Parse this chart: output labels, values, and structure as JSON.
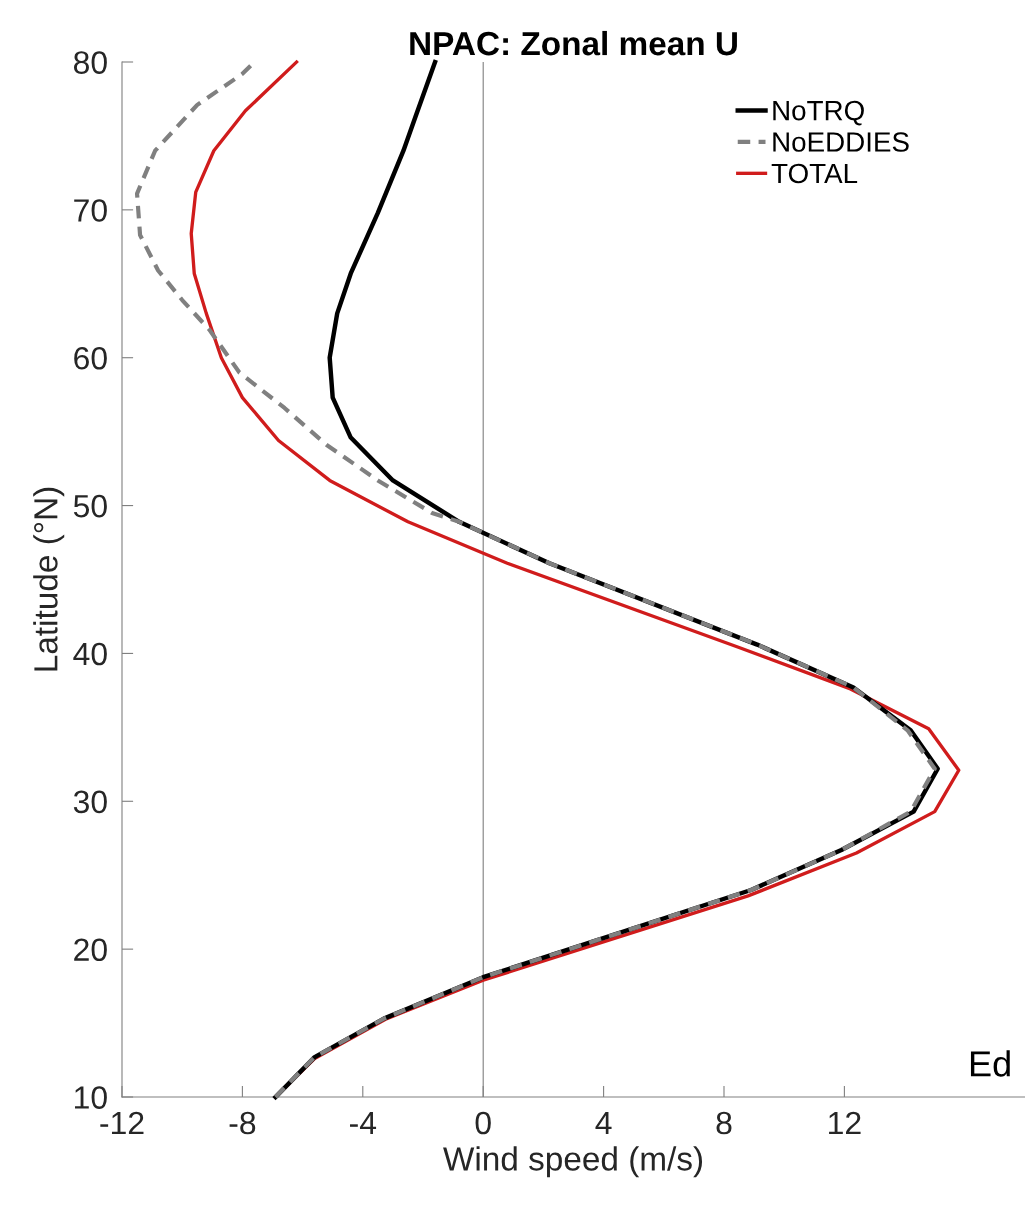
{
  "chart_data": {
    "type": "line",
    "title": "NPAC: Zonal mean U",
    "xlabel": "Wind speed (m/s)",
    "ylabel": "Latitude (°N)",
    "xlim": [
      -12,
      18
    ],
    "xticks": [
      -12,
      -8,
      -4,
      0,
      4,
      8,
      12
    ],
    "ylim": [
      10,
      80
    ],
    "yticks": [
      10,
      20,
      30,
      40,
      50,
      60,
      70,
      80
    ],
    "grid": false,
    "legend": "top right",
    "marker": "none",
    "ref_lines": [
      {
        "axis": "x",
        "value": 0,
        "color": "#808080",
        "line_style": "solid"
      }
    ],
    "annotations": [
      "Ed"
    ],
    "series": [
      {
        "name": "NoTRQ",
        "color": "#000000",
        "line_style": "solid",
        "x": [
          -6.9,
          -5.6,
          -3.3,
          0.0,
          8.9,
          11.9,
          14.3,
          15.1,
          14.2,
          12.3,
          9.1,
          2.2,
          -0.8,
          -3.0,
          -4.4,
          -5.0,
          -5.1,
          -4.85,
          -4.4,
          -3.5,
          -2.65,
          -2.25,
          -1.6
        ],
        "values": [
          10,
          12.7,
          15.3,
          18.1,
          24.0,
          26.7,
          29.3,
          32.2,
          34.8,
          37.7,
          40.6,
          46.1,
          48.9,
          51.7,
          54.6,
          57.3,
          60.0,
          63.0,
          65.7,
          69.8,
          74.0,
          76.3,
          80
        ]
      },
      {
        "name": "NoEDDIES",
        "color": "#808080",
        "line_style": "dashed",
        "x": [
          -6.9,
          -5.6,
          -3.3,
          0.0,
          8.9,
          11.9,
          14.2,
          15.0,
          14.1,
          12.3,
          9.1,
          2.2,
          -0.8,
          -1.7,
          -3.5,
          -5.2,
          -6.6,
          -8.1,
          -9.1,
          -10.0,
          -10.8,
          -11.4,
          -11.5,
          -10.9,
          -9.5,
          -8.0,
          -7.6
        ],
        "values": [
          10,
          12.7,
          15.3,
          18.1,
          24.0,
          26.7,
          29.3,
          32.2,
          34.8,
          37.7,
          40.6,
          46.1,
          48.9,
          49.5,
          51.7,
          54.1,
          56.6,
          59.0,
          61.9,
          63.9,
          65.9,
          68.3,
          71.1,
          74.0,
          77.1,
          79.2,
          80
        ]
      },
      {
        "name": "TOTAL",
        "color": "#d01c1c",
        "line_style": "solid",
        "x": [
          -6.9,
          -5.6,
          -3.2,
          0.0,
          8.8,
          12.4,
          15.0,
          15.8,
          14.8,
          12.2,
          8.5,
          0.8,
          -2.5,
          -5.1,
          -6.8,
          -8.0,
          -8.7,
          -9.2,
          -9.6,
          -9.7,
          -9.55,
          -8.95,
          -7.9,
          -6.2
        ],
        "values": [
          10,
          12.6,
          15.3,
          17.9,
          23.6,
          26.5,
          29.3,
          32.1,
          34.9,
          37.6,
          40.4,
          46.1,
          48.9,
          51.7,
          54.4,
          57.3,
          60.0,
          63.0,
          65.7,
          68.4,
          71.2,
          74.0,
          76.7,
          80
        ]
      }
    ]
  }
}
